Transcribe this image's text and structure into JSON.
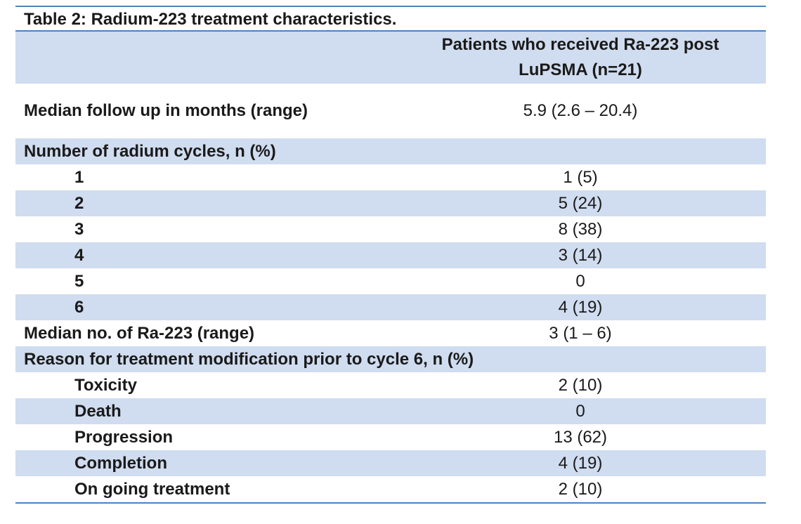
{
  "table": {
    "caption": "Table 2: Radium-223 treatment characteristics.",
    "header": {
      "label": "",
      "value": "Patients who received Ra-223 post LuPSMA (n=21)"
    },
    "rows": [
      {
        "label": "Median follow up in months (range)",
        "value": "5.9 (2.6 – 20.4)"
      },
      {
        "label": "Number of radium cycles, n (%)",
        "value": ""
      },
      {
        "label": "1",
        "value": "1 (5)"
      },
      {
        "label": "2",
        "value": "5 (24)"
      },
      {
        "label": "3",
        "value": "8 (38)"
      },
      {
        "label": "4",
        "value": "3 (14)"
      },
      {
        "label": "5",
        "value": "0"
      },
      {
        "label": "6",
        "value": "4 (19)"
      },
      {
        "label": "Median no. of Ra-223 (range)",
        "value": "3 (1 – 6)"
      },
      {
        "label": "Reason for treatment modification prior to cycle 6, n (%)",
        "value": ""
      },
      {
        "label": "Toxicity",
        "value": "2 (10)"
      },
      {
        "label": "Death",
        "value": "0"
      },
      {
        "label": "Progression",
        "value": "13 (62)"
      },
      {
        "label": "Completion",
        "value": "4 (19)"
      },
      {
        "label": "On going treatment",
        "value": "2 (10)"
      }
    ]
  },
  "colors": {
    "rule": "#4f81bd",
    "shaded_row": "#d0dcef",
    "plain_row": "#ffffff"
  }
}
